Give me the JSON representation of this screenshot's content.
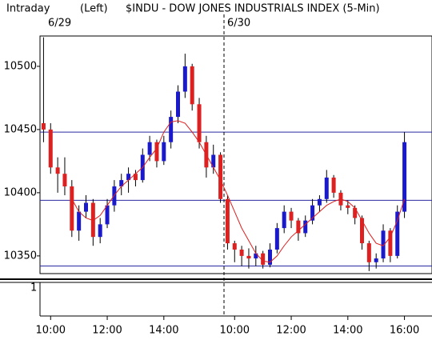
{
  "chart_data": {
    "type": "candlestick",
    "title": "$INDU - DOW JONES INDUSTRIALS INDEX (5-Min)",
    "mode_label": "Intraday",
    "side_label": "(Left)",
    "dates": [
      "6/29",
      "6/30"
    ],
    "categories": [
      null,
      "10:00",
      null,
      null,
      null,
      null,
      null,
      null,
      null,
      "12:00",
      null,
      null,
      null,
      null,
      null,
      null,
      null,
      "14:00",
      null,
      null,
      null,
      null,
      null,
      null,
      null,
      null,
      null,
      "10:00",
      null,
      null,
      null,
      null,
      null,
      null,
      null,
      "12:00",
      null,
      null,
      null,
      null,
      null,
      null,
      null,
      "14:00",
      null,
      null,
      null,
      null,
      null,
      null,
      null,
      "16:00"
    ],
    "candles": [
      [
        10455,
        10523,
        10440,
        10450
      ],
      [
        10450,
        10455,
        10415,
        10420
      ],
      [
        10420,
        10428,
        10400,
        10415
      ],
      [
        10415,
        10428,
        10398,
        10405
      ],
      [
        10405,
        10410,
        10365,
        10370
      ],
      [
        10370,
        10390,
        10362,
        10385
      ],
      [
        10385,
        10398,
        10380,
        10392
      ],
      [
        10392,
        10395,
        10358,
        10365
      ],
      [
        10365,
        10380,
        10360,
        10375
      ],
      [
        10375,
        10395,
        10372,
        10390
      ],
      [
        10390,
        10410,
        10385,
        10405
      ],
      [
        10405,
        10415,
        10398,
        10410
      ],
      [
        10410,
        10420,
        10400,
        10415
      ],
      [
        10415,
        10418,
        10405,
        10410
      ],
      [
        10410,
        10435,
        10408,
        10430
      ],
      [
        10430,
        10445,
        10425,
        10440
      ],
      [
        10440,
        10442,
        10420,
        10425
      ],
      [
        10425,
        10445,
        10422,
        10440
      ],
      [
        10440,
        10465,
        10435,
        10460
      ],
      [
        10460,
        10485,
        10455,
        10480
      ],
      [
        10480,
        10510,
        10475,
        10500
      ],
      [
        10500,
        10502,
        10465,
        10470
      ],
      [
        10470,
        10475,
        10435,
        10440
      ],
      [
        10440,
        10445,
        10412,
        10420
      ],
      [
        10420,
        10438,
        10415,
        10430
      ],
      [
        10430,
        10432,
        10392,
        10395
      ],
      [
        10395,
        10398,
        10355,
        10360
      ],
      [
        10360,
        10362,
        10345,
        10355
      ],
      [
        10355,
        10358,
        10342,
        10350
      ],
      [
        10350,
        10356,
        10340,
        10348
      ],
      [
        10348,
        10358,
        10342,
        10352
      ],
      [
        10352,
        10354,
        10340,
        10343
      ],
      [
        10343,
        10360,
        10341,
        10355
      ],
      [
        10355,
        10376,
        10352,
        10372
      ],
      [
        10372,
        10390,
        10368,
        10385
      ],
      [
        10385,
        10388,
        10372,
        10378
      ],
      [
        10378,
        10380,
        10362,
        10368
      ],
      [
        10368,
        10382,
        10365,
        10378
      ],
      [
        10378,
        10395,
        10375,
        10390
      ],
      [
        10390,
        10398,
        10385,
        10395
      ],
      [
        10395,
        10418,
        10392,
        10412
      ],
      [
        10412,
        10414,
        10396,
        10400
      ],
      [
        10400,
        10402,
        10386,
        10390
      ],
      [
        10390,
        10394,
        10383,
        10388
      ],
      [
        10388,
        10390,
        10375,
        10380
      ],
      [
        10380,
        10382,
        10355,
        10360
      ],
      [
        10360,
        10362,
        10338,
        10345
      ],
      [
        10345,
        10352,
        10340,
        10348
      ],
      [
        10348,
        10375,
        10345,
        10370
      ],
      [
        10370,
        10372,
        10345,
        10350
      ],
      [
        10350,
        10390,
        10348,
        10385
      ],
      [
        10385,
        10448,
        10380,
        10440
      ]
    ],
    "up_color": "#1a1acc",
    "down_color": "#dd2020",
    "ma": {
      "color": "#dd2020",
      "values": [
        null,
        null,
        null,
        null,
        10395,
        10385,
        10380,
        10378,
        10382,
        10390,
        10398,
        10405,
        10410,
        10415,
        10420,
        10428,
        10435,
        10448,
        10456,
        10457,
        10455,
        10448,
        10440,
        10430,
        10420,
        10410,
        10398,
        10385,
        10372,
        10362,
        10352,
        10346,
        10345,
        10350,
        10358,
        10365,
        10370,
        10375,
        10380,
        10385,
        10390,
        10393,
        10395,
        10393,
        10388,
        10378,
        10368,
        10360,
        10358,
        10365,
        10378,
        10395
      ]
    },
    "hlines": {
      "color": "#2a2aa0",
      "values": [
        10448,
        10394,
        10342
      ]
    },
    "ylim": [
      10336,
      10524
    ],
    "yticks": [
      10350,
      10400,
      10450,
      10500
    ],
    "lower_panel_label": "1"
  }
}
